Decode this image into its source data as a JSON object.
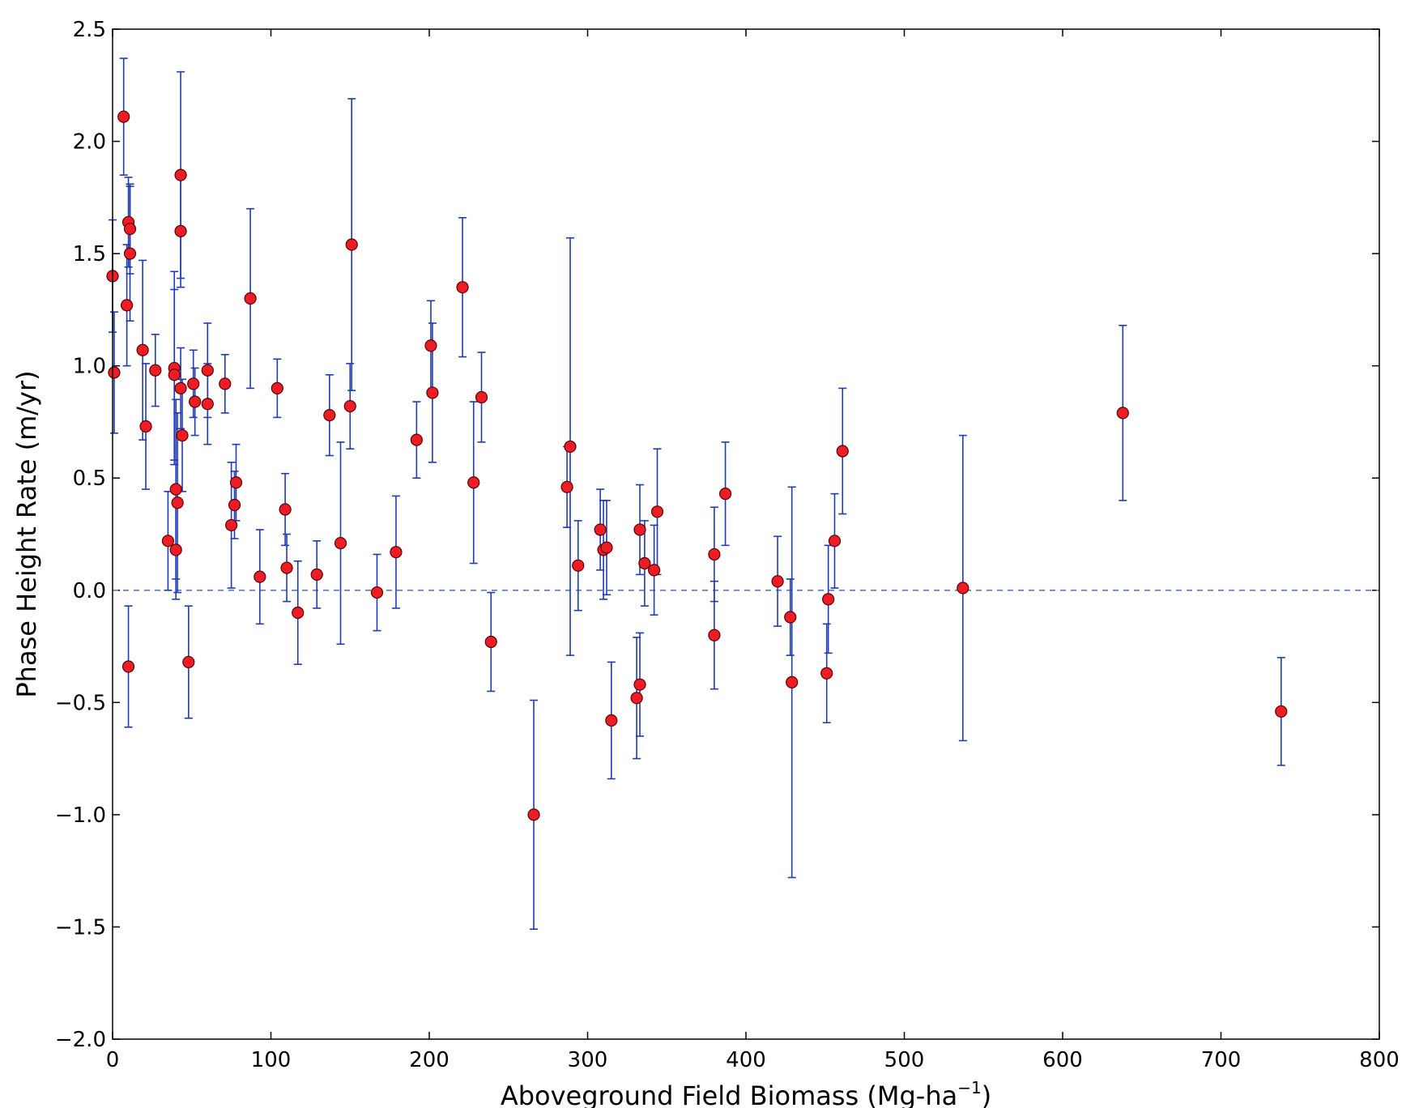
{
  "chart_data": {
    "type": "scatter",
    "title": "",
    "xlabel_main": "Aboveground Field Biomass (Mg-ha",
    "xlabel_sup": "−1",
    "xlabel_close": ")",
    "ylabel": "Phase Height Rate (m/yr)",
    "xlim": [
      0,
      800
    ],
    "ylim": [
      -2.0,
      2.5
    ],
    "xticks": [
      0,
      100,
      200,
      300,
      400,
      500,
      600,
      700,
      800
    ],
    "xtick_labels": [
      "0",
      "100",
      "200",
      "300",
      "400",
      "500",
      "600",
      "700",
      "800"
    ],
    "yticks": [
      -2.0,
      -1.5,
      -1.0,
      -0.5,
      0.0,
      0.5,
      1.0,
      1.5,
      2.0,
      2.5
    ],
    "ytick_labels": [
      "−2.0",
      "−1.5",
      "−1.0",
      "−0.5",
      "0.0",
      "0.5",
      "1.0",
      "1.5",
      "2.0",
      "2.5"
    ],
    "reference_line": {
      "y": 0.0,
      "style": "dashed"
    },
    "grid": false,
    "colors": {
      "marker_fill": "#ee1c25",
      "marker_edge": "#5a0000",
      "errorbar": "#1f3bb3",
      "reference_line": "#5a78d0"
    },
    "points": [
      {
        "x": 0,
        "y": 1.4,
        "err": 0.25
      },
      {
        "x": 1,
        "y": 0.97,
        "err": 0.27
      },
      {
        "x": 7,
        "y": 2.11,
        "err": 0.26
      },
      {
        "x": 9,
        "y": 1.27,
        "err": 0.27
      },
      {
        "x": 10,
        "y": 1.64,
        "err": 0.2
      },
      {
        "x": 10,
        "y": -0.34,
        "err": 0.27
      },
      {
        "x": 11,
        "y": 1.5,
        "err": 0.3
      },
      {
        "x": 11,
        "y": 1.61,
        "err": 0.2
      },
      {
        "x": 19,
        "y": 1.07,
        "err": 0.4
      },
      {
        "x": 21,
        "y": 0.73,
        "err": 0.28
      },
      {
        "x": 27,
        "y": 0.98,
        "err": 0.16
      },
      {
        "x": 35,
        "y": 0.22,
        "err": 0.22
      },
      {
        "x": 39,
        "y": 0.99,
        "err": 0.43
      },
      {
        "x": 39,
        "y": 0.96,
        "err": 0.38
      },
      {
        "x": 40,
        "y": 0.45,
        "err": 0.4
      },
      {
        "x": 40,
        "y": 0.18,
        "err": 0.22
      },
      {
        "x": 41,
        "y": 0.39,
        "err": 0.4
      },
      {
        "x": 43,
        "y": 1.85,
        "err": 0.46
      },
      {
        "x": 43,
        "y": 1.6,
        "err": 0.25
      },
      {
        "x": 43,
        "y": 0.9,
        "err": 0.18
      },
      {
        "x": 44,
        "y": 0.69,
        "err": 0.25
      },
      {
        "x": 48,
        "y": -0.32,
        "err": 0.25
      },
      {
        "x": 51,
        "y": 0.92,
        "err": 0.15
      },
      {
        "x": 52,
        "y": 0.84,
        "err": 0.15
      },
      {
        "x": 60,
        "y": 0.98,
        "err": 0.21
      },
      {
        "x": 60,
        "y": 0.83,
        "err": 0.18
      },
      {
        "x": 71,
        "y": 0.92,
        "err": 0.13
      },
      {
        "x": 75,
        "y": 0.29,
        "err": 0.28
      },
      {
        "x": 77,
        "y": 0.38,
        "err": 0.15
      },
      {
        "x": 78,
        "y": 0.48,
        "err": 0.17
      },
      {
        "x": 87,
        "y": 1.3,
        "err": 0.4
      },
      {
        "x": 93,
        "y": 0.06,
        "err": 0.21
      },
      {
        "x": 104,
        "y": 0.9,
        "err": 0.13
      },
      {
        "x": 109,
        "y": 0.36,
        "err": 0.16
      },
      {
        "x": 110,
        "y": 0.1,
        "err": 0.15
      },
      {
        "x": 117,
        "y": -0.1,
        "err": 0.23
      },
      {
        "x": 129,
        "y": 0.07,
        "err": 0.15
      },
      {
        "x": 137,
        "y": 0.78,
        "err": 0.18
      },
      {
        "x": 144,
        "y": 0.21,
        "err": 0.45
      },
      {
        "x": 150,
        "y": 0.82,
        "err": 0.19
      },
      {
        "x": 151,
        "y": 1.54,
        "err": 0.65
      },
      {
        "x": 167,
        "y": -0.01,
        "err": 0.17
      },
      {
        "x": 179,
        "y": 0.17,
        "err": 0.25
      },
      {
        "x": 192,
        "y": 0.67,
        "err": 0.17
      },
      {
        "x": 201,
        "y": 1.09,
        "err": 0.2
      },
      {
        "x": 202,
        "y": 0.88,
        "err": 0.31
      },
      {
        "x": 221,
        "y": 1.35,
        "err": 0.31
      },
      {
        "x": 228,
        "y": 0.48,
        "err": 0.36
      },
      {
        "x": 233,
        "y": 0.86,
        "err": 0.2
      },
      {
        "x": 239,
        "y": -0.23,
        "err": 0.22
      },
      {
        "x": 266,
        "y": -1.0,
        "err": 0.51
      },
      {
        "x": 287,
        "y": 0.46,
        "err": 0.18
      },
      {
        "x": 289,
        "y": 0.64,
        "err": 0.93
      },
      {
        "x": 294,
        "y": 0.11,
        "err": 0.2
      },
      {
        "x": 308,
        "y": 0.27,
        "err": 0.18
      },
      {
        "x": 310,
        "y": 0.18,
        "err": 0.22
      },
      {
        "x": 312,
        "y": 0.19,
        "err": 0.21
      },
      {
        "x": 315,
        "y": -0.58,
        "err": 0.26
      },
      {
        "x": 331,
        "y": -0.48,
        "err": 0.27
      },
      {
        "x": 333,
        "y": 0.27,
        "err": 0.2
      },
      {
        "x": 333,
        "y": -0.42,
        "err": 0.23
      },
      {
        "x": 336,
        "y": 0.12,
        "err": 0.19
      },
      {
        "x": 342,
        "y": 0.09,
        "err": 0.2
      },
      {
        "x": 344,
        "y": 0.35,
        "err": 0.28
      },
      {
        "x": 380,
        "y": 0.16,
        "err": 0.21
      },
      {
        "x": 380,
        "y": -0.2,
        "err": 0.24
      },
      {
        "x": 387,
        "y": 0.43,
        "err": 0.23
      },
      {
        "x": 420,
        "y": 0.04,
        "err": 0.2
      },
      {
        "x": 428,
        "y": -0.12,
        "err": 0.17
      },
      {
        "x": 429,
        "y": -0.41,
        "err": 0.87
      },
      {
        "x": 451,
        "y": -0.37,
        "err": 0.22
      },
      {
        "x": 452,
        "y": -0.04,
        "err": 0.24
      },
      {
        "x": 456,
        "y": 0.22,
        "err": 0.21
      },
      {
        "x": 461,
        "y": 0.62,
        "err": 0.28
      },
      {
        "x": 537,
        "y": 0.01,
        "err": 0.68
      },
      {
        "x": 638,
        "y": 0.79,
        "err": 0.39
      },
      {
        "x": 738,
        "y": -0.54,
        "err": 0.24
      }
    ]
  }
}
